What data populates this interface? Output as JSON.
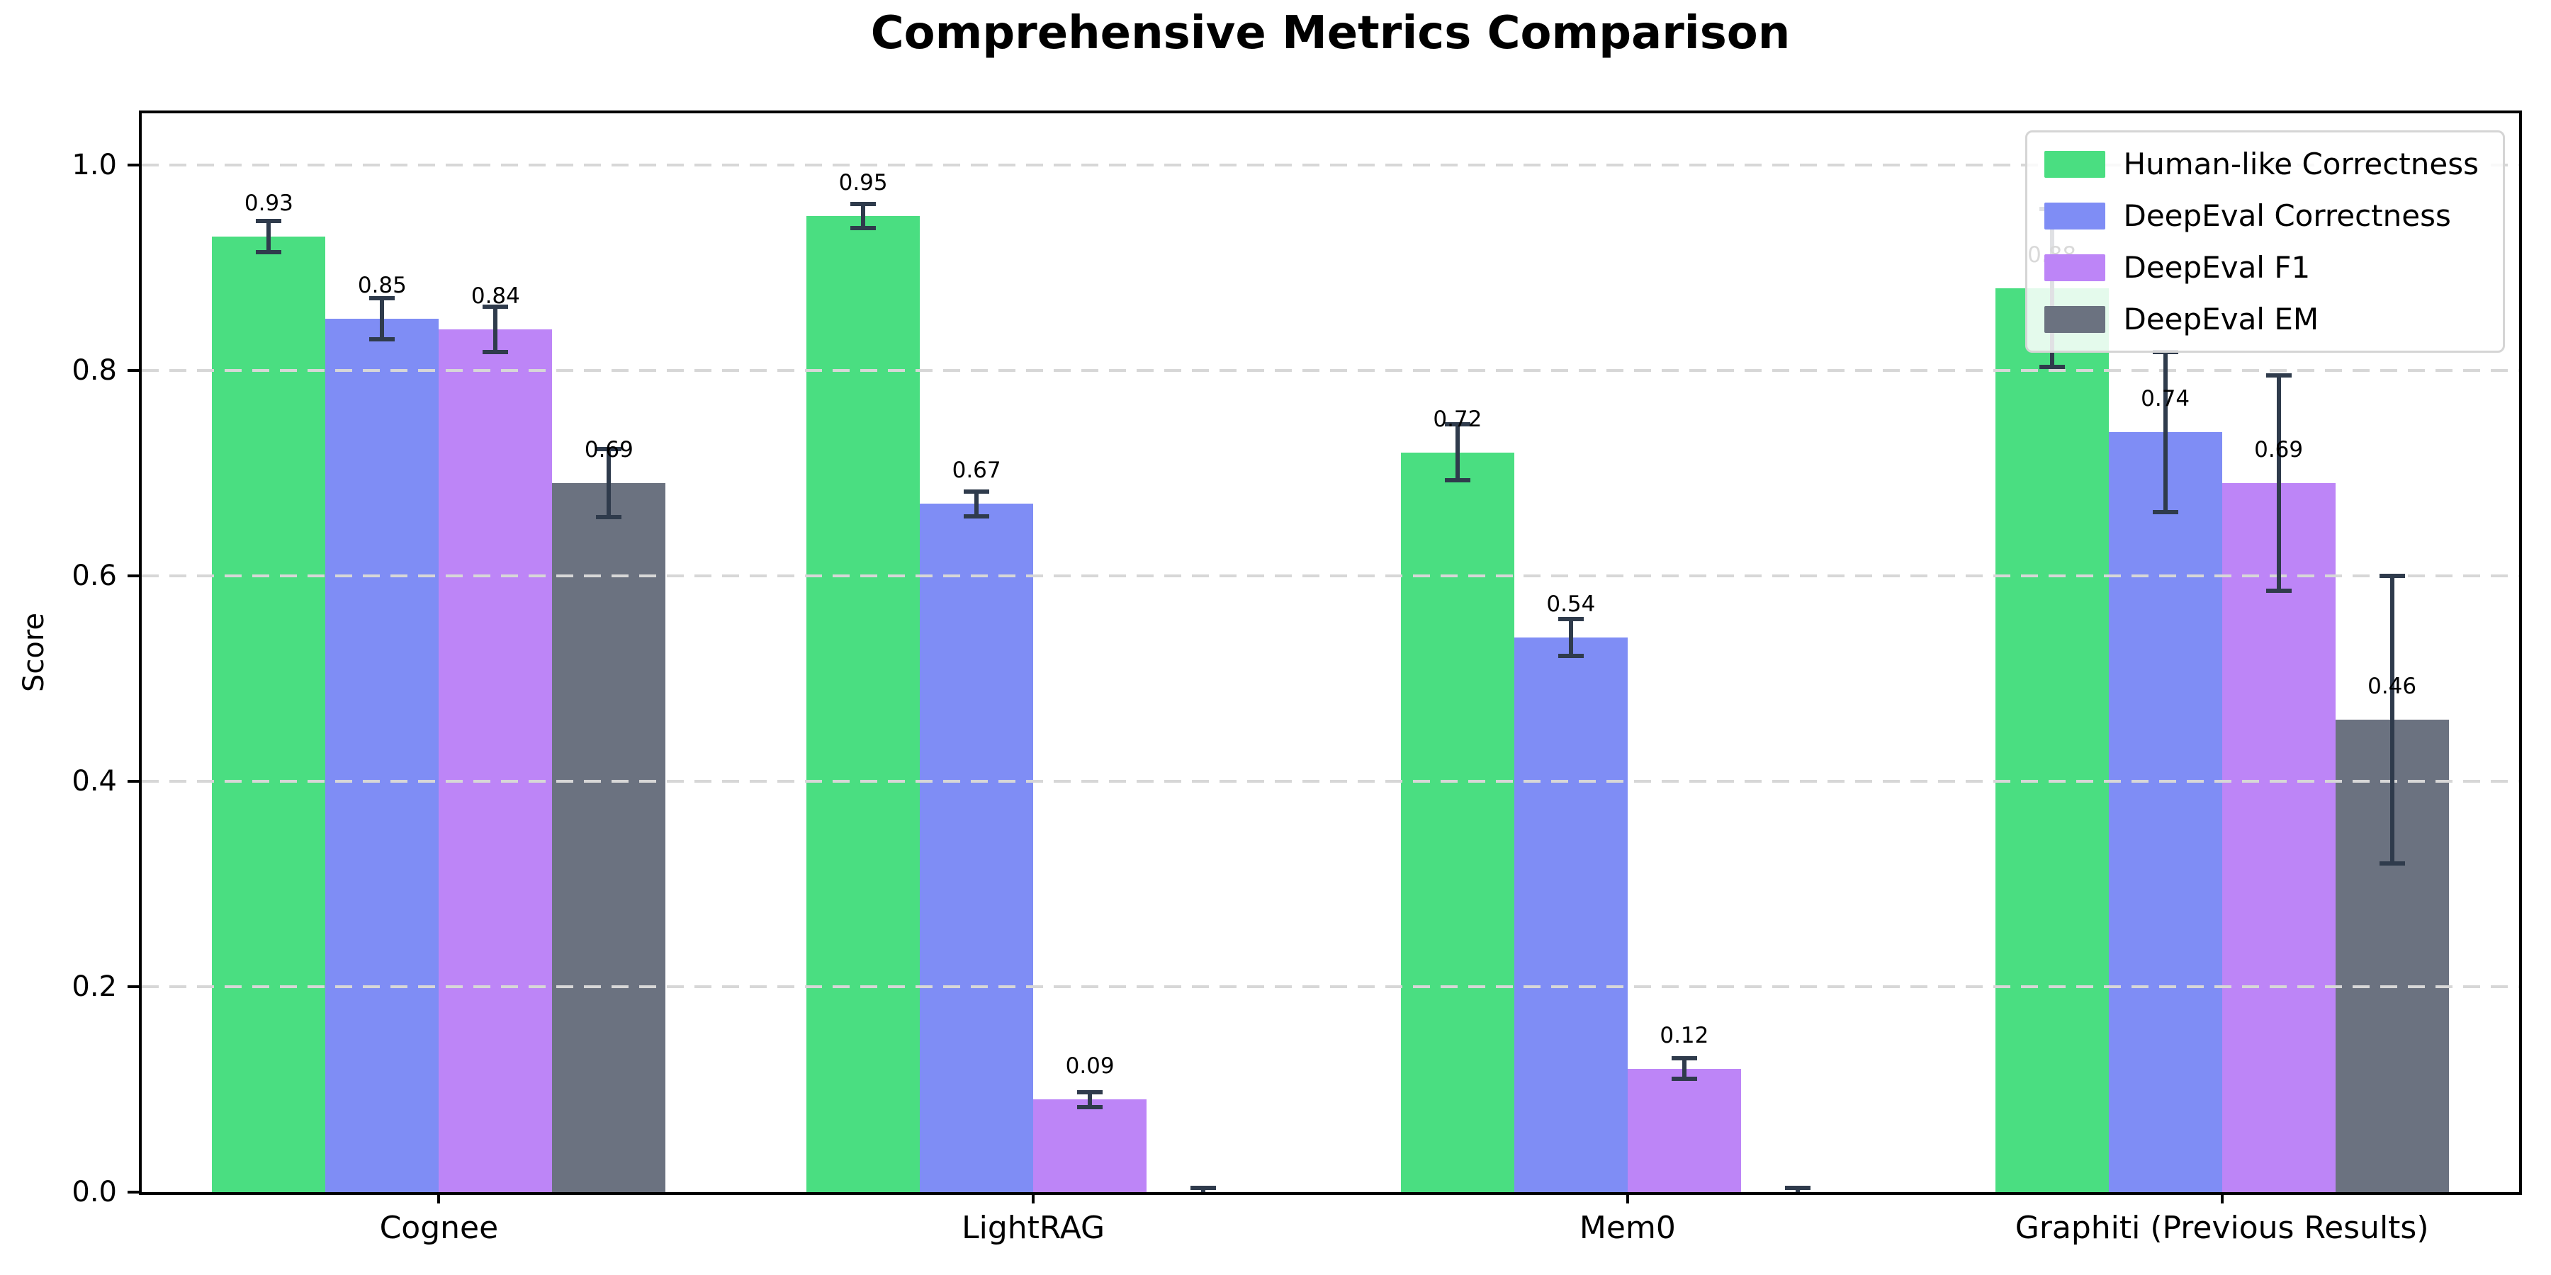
{
  "chart_data": {
    "type": "bar",
    "title": "Comprehensive Metrics Comparison",
    "ylabel": "Score",
    "categories": [
      "Cognee",
      "LightRAG",
      "Mem0",
      "Graphiti (Previous Results)"
    ],
    "series": [
      {
        "name": "Human-like Correctness",
        "color": "#4ade81",
        "values": [
          0.93,
          0.95,
          0.72,
          0.88
        ],
        "errors": [
          0.015,
          0.012,
          0.027,
          0.077
        ],
        "labels": [
          "0.93",
          "0.95",
          "0.72",
          "0.88"
        ]
      },
      {
        "name": "DeepEval Correctness",
        "color": "#7f8df5",
        "values": [
          0.85,
          0.67,
          0.54,
          0.74
        ],
        "errors": [
          0.02,
          0.012,
          0.018,
          0.078
        ],
        "labels": [
          "0.85",
          "0.67",
          "0.54",
          "0.74"
        ]
      },
      {
        "name": "DeepEval F1",
        "color": "#bd85f7",
        "values": [
          0.84,
          0.09,
          0.12,
          0.69
        ],
        "errors": [
          0.022,
          0.007,
          0.01,
          0.105
        ],
        "labels": [
          "0.84",
          "0.09",
          "0.12",
          "0.69"
        ]
      },
      {
        "name": "DeepEval EM",
        "color": "#6b7280",
        "values": [
          0.69,
          0.0,
          0.0,
          0.46
        ],
        "errors": [
          0.033,
          0.004,
          0.004,
          0.14
        ],
        "labels": [
          "0.69",
          "",
          "",
          "0.46"
        ]
      }
    ],
    "yticks": [
      0.0,
      0.2,
      0.4,
      0.6,
      0.8,
      1.0
    ],
    "ylim": [
      0,
      1.05
    ],
    "grid": "horizontal-dashed",
    "legend_position": "upper-right",
    "error_bar_color": "#2f3b4c"
  }
}
